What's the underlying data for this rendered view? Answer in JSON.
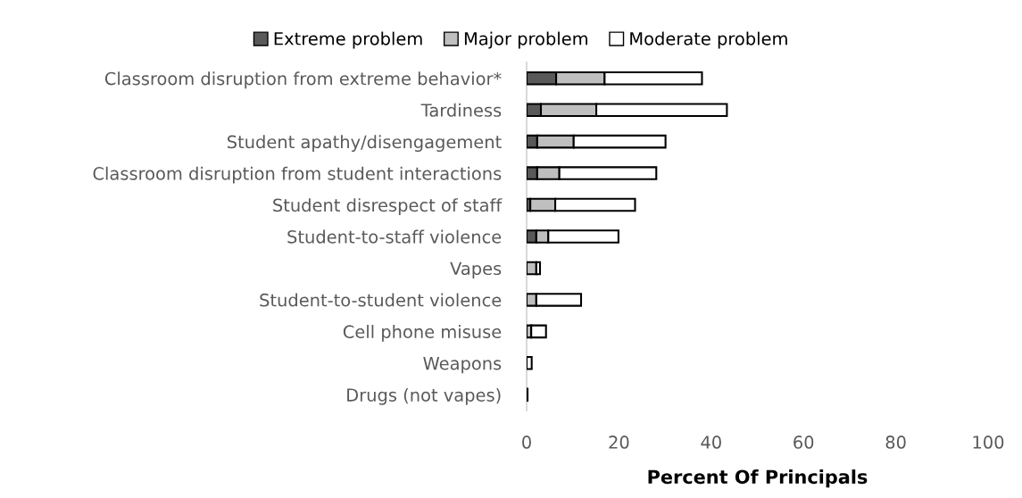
{
  "chart_data": {
    "type": "bar",
    "orientation": "horizontal",
    "stacked": true,
    "categories": [
      "Classroom disruption from extreme behavior*",
      "Tardiness",
      "Student apathy/disengagement",
      "Classroom disruption from student interactions",
      "Student disrespect of staff",
      "Student-to-staff violence",
      "Vapes",
      "Student-to-student violence",
      "Cell phone misuse",
      "Weapons",
      "Drugs (not vapes)"
    ],
    "series": [
      {
        "name": "Extreme problem",
        "color": "#595959",
        "values": [
          6.4,
          3.1,
          2.3,
          2.3,
          0.8,
          2.1,
          0,
          0,
          0,
          0,
          0
        ]
      },
      {
        "name": "Major problem",
        "color": "#bfbfbf",
        "values": [
          10.5,
          12.0,
          7.9,
          4.8,
          5.4,
          2.6,
          2.1,
          2.1,
          1.0,
          0,
          0
        ]
      },
      {
        "name": "Moderate problem",
        "color": "#ffffff",
        "values": [
          21.1,
          28.3,
          19.9,
          21.0,
          17.3,
          15.2,
          0.8,
          9.7,
          3.2,
          1.1,
          0.2
        ]
      }
    ],
    "xlim": [
      0,
      100
    ],
    "xticks": [
      0,
      20,
      40,
      60,
      80,
      100
    ],
    "xlabel": "Percent Of Principals",
    "legend": "top"
  }
}
